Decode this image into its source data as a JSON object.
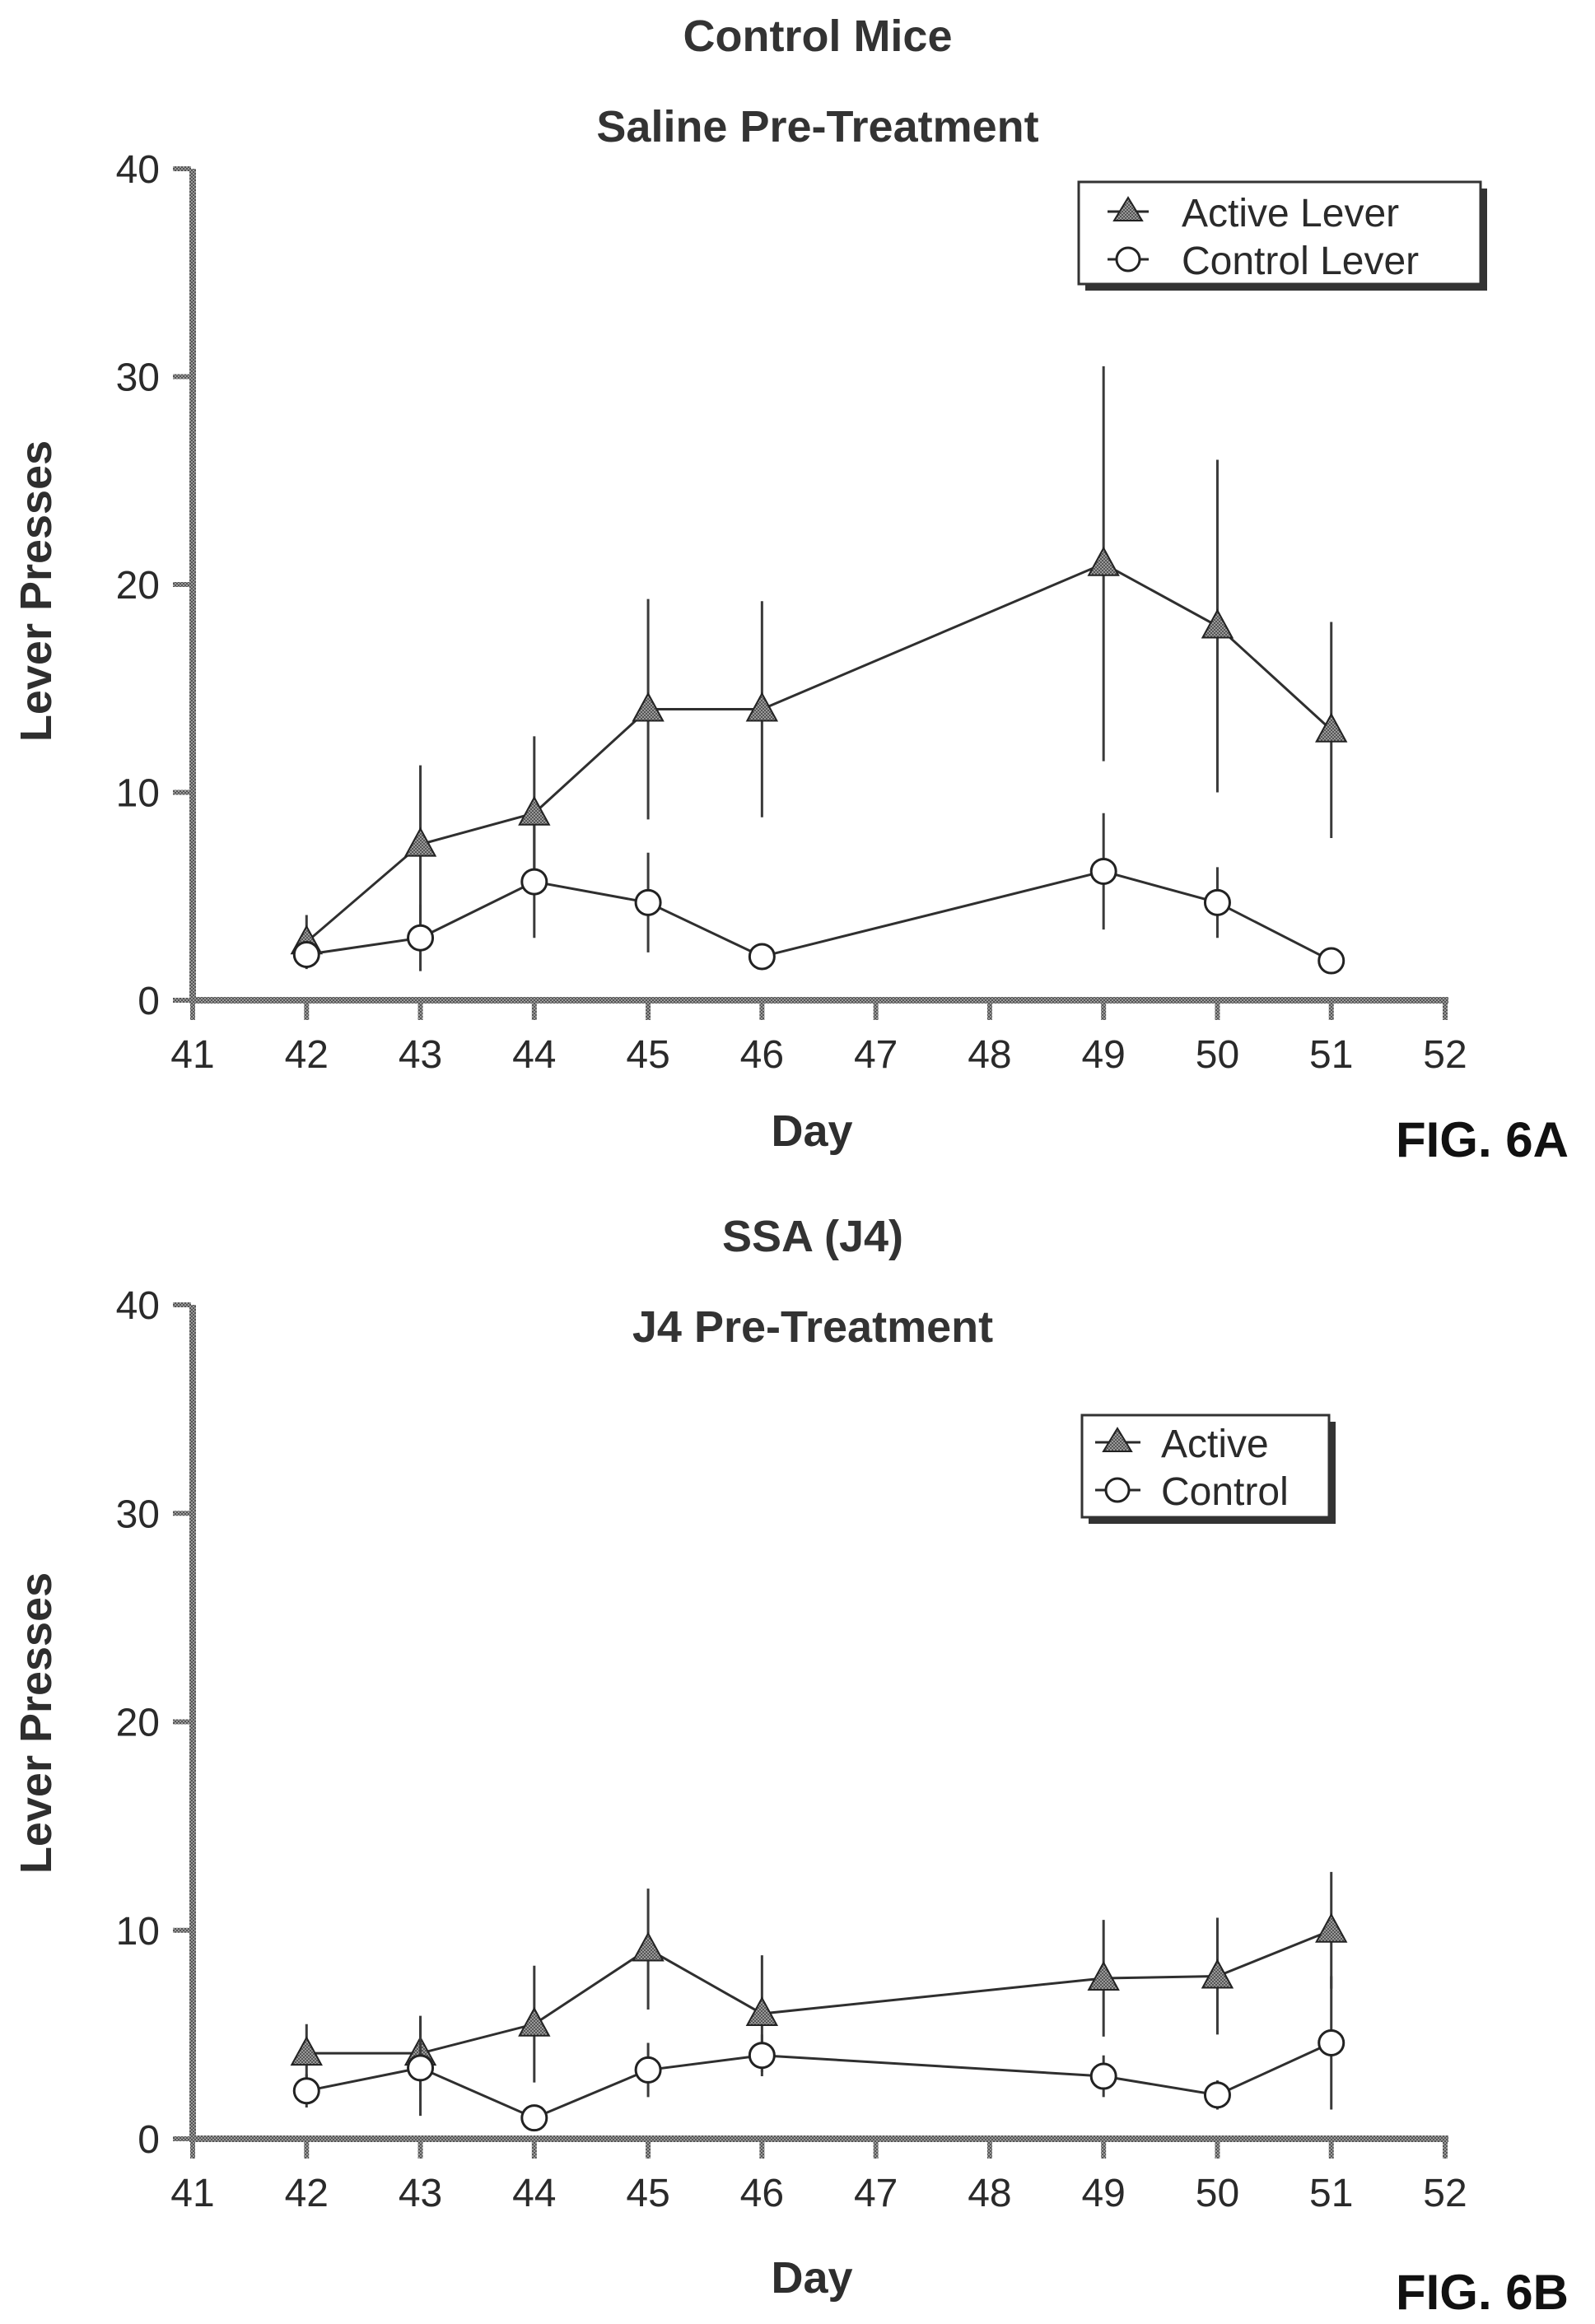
{
  "chart_data": [
    {
      "type": "line",
      "title": "Control Mice",
      "subtitle": "Saline Pre-Treatment",
      "xlabel": "Day",
      "ylabel": "Lever Presses",
      "figure_label": "FIG. 6A",
      "xlim": [
        41,
        52
      ],
      "ylim": [
        0,
        40
      ],
      "xticks": [
        "41",
        "42",
        "43",
        "44",
        "45",
        "46",
        "47",
        "48",
        "49",
        "50",
        "51",
        "52"
      ],
      "yticks": [
        "0",
        "10",
        "20",
        "30",
        "40"
      ],
      "legend_position": "top-right",
      "series": [
        {
          "name": "Active Lever",
          "marker": "triangle",
          "x": [
            42,
            43,
            44,
            45,
            46,
            49,
            50,
            51
          ],
          "y": [
            2.8,
            7.5,
            9.0,
            14.0,
            14.0,
            21.0,
            18.0,
            13.0
          ],
          "error": [
            1.3,
            3.8,
            3.7,
            5.3,
            5.2,
            9.5,
            8.0,
            5.2
          ]
        },
        {
          "name": "Control Lever",
          "marker": "circle",
          "x": [
            42,
            43,
            44,
            45,
            46,
            49,
            50,
            51
          ],
          "y": [
            2.2,
            3.0,
            5.7,
            4.7,
            2.1,
            6.2,
            4.7,
            1.9
          ],
          "error": [
            0.5,
            1.6,
            2.7,
            2.4,
            0.4,
            2.8,
            1.7,
            0.4
          ]
        }
      ]
    },
    {
      "type": "line",
      "title": "SSA (J4)",
      "subtitle": "J4 Pre-Treatment",
      "xlabel": "Day",
      "ylabel": "Lever Presses",
      "figure_label": "FIG. 6B",
      "xlim": [
        41,
        52
      ],
      "ylim": [
        0,
        40
      ],
      "xticks": [
        "41",
        "42",
        "43",
        "44",
        "45",
        "46",
        "47",
        "48",
        "49",
        "50",
        "51",
        "52"
      ],
      "yticks": [
        "0",
        "10",
        "20",
        "30",
        "40"
      ],
      "legend_position": "top-right",
      "series": [
        {
          "name": "Active",
          "marker": "triangle",
          "x": [
            42,
            43,
            44,
            45,
            46,
            49,
            50,
            51
          ],
          "y": [
            4.1,
            4.1,
            5.5,
            9.1,
            6.0,
            7.7,
            7.8,
            10.0
          ],
          "error": [
            1.4,
            1.8,
            2.8,
            2.9,
            2.8,
            2.8,
            2.8,
            2.8
          ]
        },
        {
          "name": "Control",
          "marker": "circle",
          "x": [
            42,
            43,
            44,
            45,
            46,
            49,
            50,
            51
          ],
          "y": [
            2.3,
            3.4,
            1.0,
            3.3,
            4.0,
            3.0,
            2.1,
            4.6
          ],
          "error": [
            0.8,
            2.3,
            0.5,
            1.3,
            1.0,
            1.0,
            0.7,
            3.2
          ]
        }
      ]
    }
  ]
}
